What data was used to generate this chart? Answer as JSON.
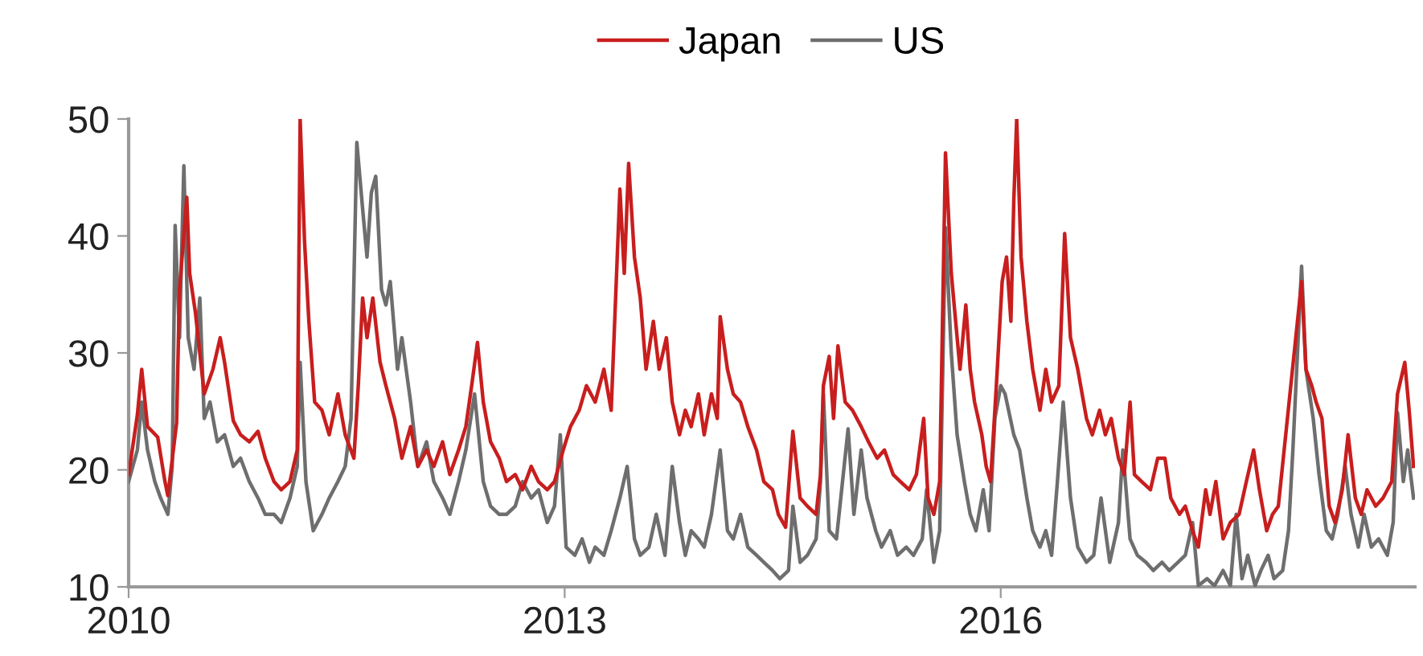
{
  "chart_data": {
    "type": "line",
    "xlim": [
      2010,
      2018.85
    ],
    "xticks": [
      2010,
      2013,
      2016
    ],
    "ylim": [
      10,
      50
    ],
    "yticks": [
      10,
      20,
      30,
      40,
      50
    ],
    "grid": false,
    "legend": "top",
    "marker": "none",
    "line_style": "solid",
    "series": [
      {
        "name": "Japan",
        "color": "#c81e1e",
        "x": [
          2010.0,
          2010.06,
          2010.09,
          2010.13,
          2010.2,
          2010.25,
          2010.27,
          2010.33,
          2010.35,
          2010.4,
          2010.42,
          2010.46,
          2010.52,
          2010.58,
          2010.63,
          2010.66,
          2010.72,
          2010.77,
          2010.83,
          2010.89,
          2010.94,
          2011.0,
          2011.05,
          2011.11,
          2011.16,
          2011.18,
          2011.21,
          2011.24,
          2011.28,
          2011.33,
          2011.38,
          2011.44,
          2011.49,
          2011.55,
          2011.58,
          2011.61,
          2011.64,
          2011.68,
          2011.73,
          2011.77,
          2011.83,
          2011.88,
          2011.94,
          2011.99,
          2012.05,
          2012.1,
          2012.16,
          2012.21,
          2012.27,
          2012.32,
          2012.36,
          2012.4,
          2012.44,
          2012.49,
          2012.55,
          2012.6,
          2012.66,
          2012.71,
          2012.77,
          2012.82,
          2012.88,
          2012.93,
          2012.99,
          2013.04,
          2013.1,
          2013.15,
          2013.21,
          2013.27,
          2013.32,
          2013.38,
          2013.41,
          2013.44,
          2013.48,
          2013.52,
          2013.56,
          2013.61,
          2013.65,
          2013.7,
          2013.74,
          2013.79,
          2013.83,
          2013.87,
          2013.92,
          2013.96,
          2014.01,
          2014.05,
          2014.07,
          2014.12,
          2014.16,
          2014.21,
          2014.26,
          2014.32,
          2014.37,
          2014.43,
          2014.47,
          2014.52,
          2014.57,
          2014.62,
          2014.67,
          2014.73,
          2014.76,
          2014.78,
          2014.82,
          2014.85,
          2014.88,
          2014.93,
          2014.98,
          2015.04,
          2015.09,
          2015.15,
          2015.2,
          2015.26,
          2015.31,
          2015.37,
          2015.42,
          2015.47,
          2015.5,
          2015.54,
          2015.58,
          2015.62,
          2015.66,
          2015.69,
          2015.72,
          2015.76,
          2015.79,
          2015.82,
          2015.87,
          2015.9,
          2015.93,
          2015.97,
          2016.01,
          2016.04,
          2016.07,
          2016.09,
          2016.11,
          2016.14,
          2016.18,
          2016.22,
          2016.27,
          2016.31,
          2016.35,
          2016.4,
          2016.44,
          2016.48,
          2016.53,
          2016.59,
          2016.63,
          2016.68,
          2016.72,
          2016.76,
          2016.81,
          2016.85,
          2016.89,
          2016.92,
          2016.97,
          2017.03,
          2017.08,
          2017.13,
          2017.17,
          2017.23,
          2017.27,
          2017.32,
          2017.36,
          2017.41,
          2017.44,
          2017.48,
          2017.53,
          2017.58,
          2017.64,
          2017.69,
          2017.74,
          2017.78,
          2017.83,
          2017.87,
          2017.91,
          2018.07,
          2018.1,
          2018.14,
          2018.17,
          2018.21,
          2018.26,
          2018.3,
          2018.35,
          2018.39,
          2018.44,
          2018.48,
          2018.52,
          2018.58,
          2018.63,
          2018.69,
          2018.73,
          2018.78,
          2018.81,
          2018.84
        ],
        "values": [
          19.6,
          24.7,
          28.6,
          23.7,
          22.8,
          19,
          17.8,
          24,
          35.4,
          43.3,
          36.8,
          33.4,
          26.5,
          28.6,
          31.3,
          29.2,
          24.2,
          23,
          22.4,
          23.3,
          21,
          19,
          18.3,
          19,
          21.7,
          50,
          39.6,
          32.7,
          25.8,
          25.1,
          23,
          26.5,
          23,
          21,
          27.2,
          34.7,
          31.3,
          34.7,
          29.2,
          27.2,
          24.4,
          21,
          23.7,
          20.3,
          21.7,
          20.3,
          22.4,
          19.6,
          21.7,
          23.7,
          27.2,
          30.9,
          25.8,
          22.4,
          21,
          19,
          19.6,
          18.3,
          20.3,
          19,
          18.3,
          19,
          21.7,
          23.7,
          25.1,
          27.2,
          25.8,
          28.6,
          25.1,
          44,
          36.8,
          46.2,
          38.2,
          34.7,
          28.6,
          32.7,
          28.6,
          31.3,
          25.8,
          23,
          25.1,
          23.7,
          26.5,
          23,
          26.5,
          24.4,
          33.1,
          28.6,
          26.5,
          25.8,
          23.7,
          21.7,
          19,
          18.3,
          16.2,
          15.1,
          23.3,
          17.6,
          16.9,
          16.2,
          19.6,
          27.2,
          29.7,
          24.4,
          30.6,
          25.8,
          25.1,
          23.7,
          22.4,
          21,
          21.7,
          19.6,
          19,
          18.3,
          19.6,
          24.4,
          17.6,
          16.2,
          19,
          47.1,
          36.8,
          32.7,
          28.6,
          34.1,
          28.6,
          25.8,
          23,
          20.3,
          19,
          27.2,
          36.1,
          38.2,
          32.7,
          43,
          50,
          38.2,
          32.7,
          28.6,
          25.1,
          28.6,
          25.8,
          27.2,
          40.2,
          31.3,
          28.6,
          24.4,
          23,
          25.1,
          23,
          24.4,
          21,
          19.6,
          25.8,
          19.6,
          19,
          18.3,
          21,
          21,
          17.6,
          16.2,
          16.9,
          14.8,
          13.4,
          18.3,
          16.2,
          19,
          14.1,
          15.5,
          16.2,
          19,
          21.7,
          18.3,
          14.8,
          16.2,
          16.9,
          36.1,
          28.6,
          27.2,
          25.8,
          24.4,
          16.9,
          15.5,
          18.3,
          23,
          17.6,
          16.2,
          18.3,
          16.9,
          17.6,
          19,
          26.5,
          29.2,
          25.1,
          20.3
        ]
      },
      {
        "name": "US",
        "color": "#6e6e6e",
        "x": [
          2010.0,
          2010.06,
          2010.09,
          2010.13,
          2010.18,
          2010.22,
          2010.27,
          2010.3,
          2010.32,
          2010.35,
          2010.38,
          2010.41,
          2010.45,
          2010.49,
          2010.52,
          2010.56,
          2010.61,
          2010.66,
          2010.72,
          2010.77,
          2010.83,
          2010.89,
          2010.94,
          2011.0,
          2011.05,
          2011.11,
          2011.16,
          2011.18,
          2011.22,
          2011.27,
          2011.33,
          2011.38,
          2011.44,
          2011.49,
          2011.53,
          2011.57,
          2011.61,
          2011.64,
          2011.67,
          2011.7,
          2011.74,
          2011.77,
          2011.8,
          2011.85,
          2011.88,
          2011.94,
          2011.99,
          2012.05,
          2012.1,
          2012.16,
          2012.21,
          2012.27,
          2012.32,
          2012.38,
          2012.44,
          2012.49,
          2012.55,
          2012.6,
          2012.66,
          2012.71,
          2012.77,
          2012.82,
          2012.88,
          2012.93,
          2012.97,
          2013.01,
          2013.07,
          2013.12,
          2013.17,
          2013.21,
          2013.27,
          2013.32,
          2013.38,
          2013.43,
          2013.48,
          2013.52,
          2013.58,
          2013.63,
          2013.69,
          2013.74,
          2013.79,
          2013.83,
          2013.87,
          2013.92,
          2013.96,
          2014.01,
          2014.07,
          2014.12,
          2014.16,
          2014.21,
          2014.26,
          2014.32,
          2014.37,
          2014.43,
          2014.48,
          2014.54,
          2014.57,
          2014.62,
          2014.67,
          2014.73,
          2014.76,
          2014.78,
          2014.82,
          2014.87,
          2014.95,
          2014.99,
          2015.04,
          2015.08,
          2015.14,
          2015.18,
          2015.24,
          2015.29,
          2015.35,
          2015.4,
          2015.46,
          2015.49,
          2015.54,
          2015.58,
          2015.62,
          2015.66,
          2015.7,
          2015.75,
          2015.79,
          2015.83,
          2015.88,
          2015.92,
          2015.96,
          2016.0,
          2016.03,
          2016.09,
          2016.13,
          2016.18,
          2016.22,
          2016.27,
          2016.31,
          2016.35,
          2016.39,
          2016.43,
          2016.48,
          2016.53,
          2016.59,
          2016.64,
          2016.69,
          2016.75,
          2016.81,
          2016.84,
          2016.89,
          2016.94,
          2017.0,
          2017.05,
          2017.11,
          2017.16,
          2017.22,
          2017.27,
          2017.32,
          2017.36,
          2017.42,
          2017.47,
          2017.53,
          2017.58,
          2017.62,
          2017.66,
          2017.7,
          2017.75,
          2017.79,
          2017.84,
          2017.88,
          2017.94,
          2017.98,
          2018.01,
          2018.07,
          2018.1,
          2018.15,
          2018.19,
          2018.24,
          2018.28,
          2018.32,
          2018.37,
          2018.41,
          2018.46,
          2018.5,
          2018.55,
          2018.6,
          2018.66,
          2018.7,
          2018.73,
          2018.77,
          2018.8,
          2018.84
        ],
        "values": [
          19,
          21.7,
          25.8,
          21.7,
          19,
          17.6,
          16.2,
          20.3,
          40.9,
          31.3,
          46,
          31.3,
          28.6,
          34.7,
          24.4,
          25.8,
          22.4,
          23,
          20.3,
          21,
          19,
          17.6,
          16.2,
          16.2,
          15.5,
          17.6,
          20.3,
          29.2,
          19,
          14.8,
          16.2,
          17.6,
          19,
          20.3,
          24.4,
          48,
          42.3,
          38.2,
          43.7,
          45.1,
          35.4,
          34.1,
          36.1,
          28.6,
          31.3,
          25.8,
          20.3,
          22.4,
          19,
          17.6,
          16.2,
          19,
          21.7,
          26.5,
          19,
          16.9,
          16.2,
          16.2,
          16.9,
          19,
          17.6,
          18.3,
          15.5,
          16.9,
          23,
          13.4,
          12.7,
          14.1,
          12.1,
          13.4,
          12.7,
          14.8,
          17.6,
          20.3,
          14.1,
          12.7,
          13.4,
          16.2,
          12.7,
          20.3,
          15.5,
          12.7,
          14.8,
          14.1,
          13.4,
          16.2,
          21.7,
          14.8,
          14.1,
          16.2,
          13.4,
          12.7,
          12.1,
          11.4,
          10.7,
          11.4,
          16.9,
          12.1,
          12.7,
          14.1,
          19,
          26.5,
          14.8,
          14.1,
          23.5,
          16.2,
          21.7,
          17.6,
          14.8,
          13.4,
          14.8,
          12.7,
          13.4,
          12.7,
          14.1,
          18.3,
          12.1,
          14.8,
          40.7,
          30,
          23,
          19,
          16.2,
          14.8,
          18.3,
          14.8,
          24.4,
          27.2,
          26.5,
          23,
          21.7,
          17.6,
          14.8,
          13.4,
          14.8,
          12.7,
          19,
          25.8,
          17.6,
          13.4,
          12.1,
          12.7,
          17.6,
          12.1,
          15.5,
          21.7,
          14.1,
          12.7,
          12.1,
          11.4,
          12.1,
          11.4,
          12.1,
          12.7,
          15.5,
          10.1,
          10.7,
          10.1,
          11.4,
          10.1,
          16.2,
          10.7,
          12.7,
          10.1,
          11.4,
          12.7,
          10.7,
          11.4,
          14.8,
          21.7,
          37.4,
          28.6,
          24.4,
          19.6,
          14.8,
          14.1,
          16.2,
          20.3,
          16.2,
          13.4,
          16.2,
          13.4,
          14.1,
          12.7,
          15.5,
          24.9,
          19,
          21.7,
          17.6
        ]
      }
    ]
  }
}
